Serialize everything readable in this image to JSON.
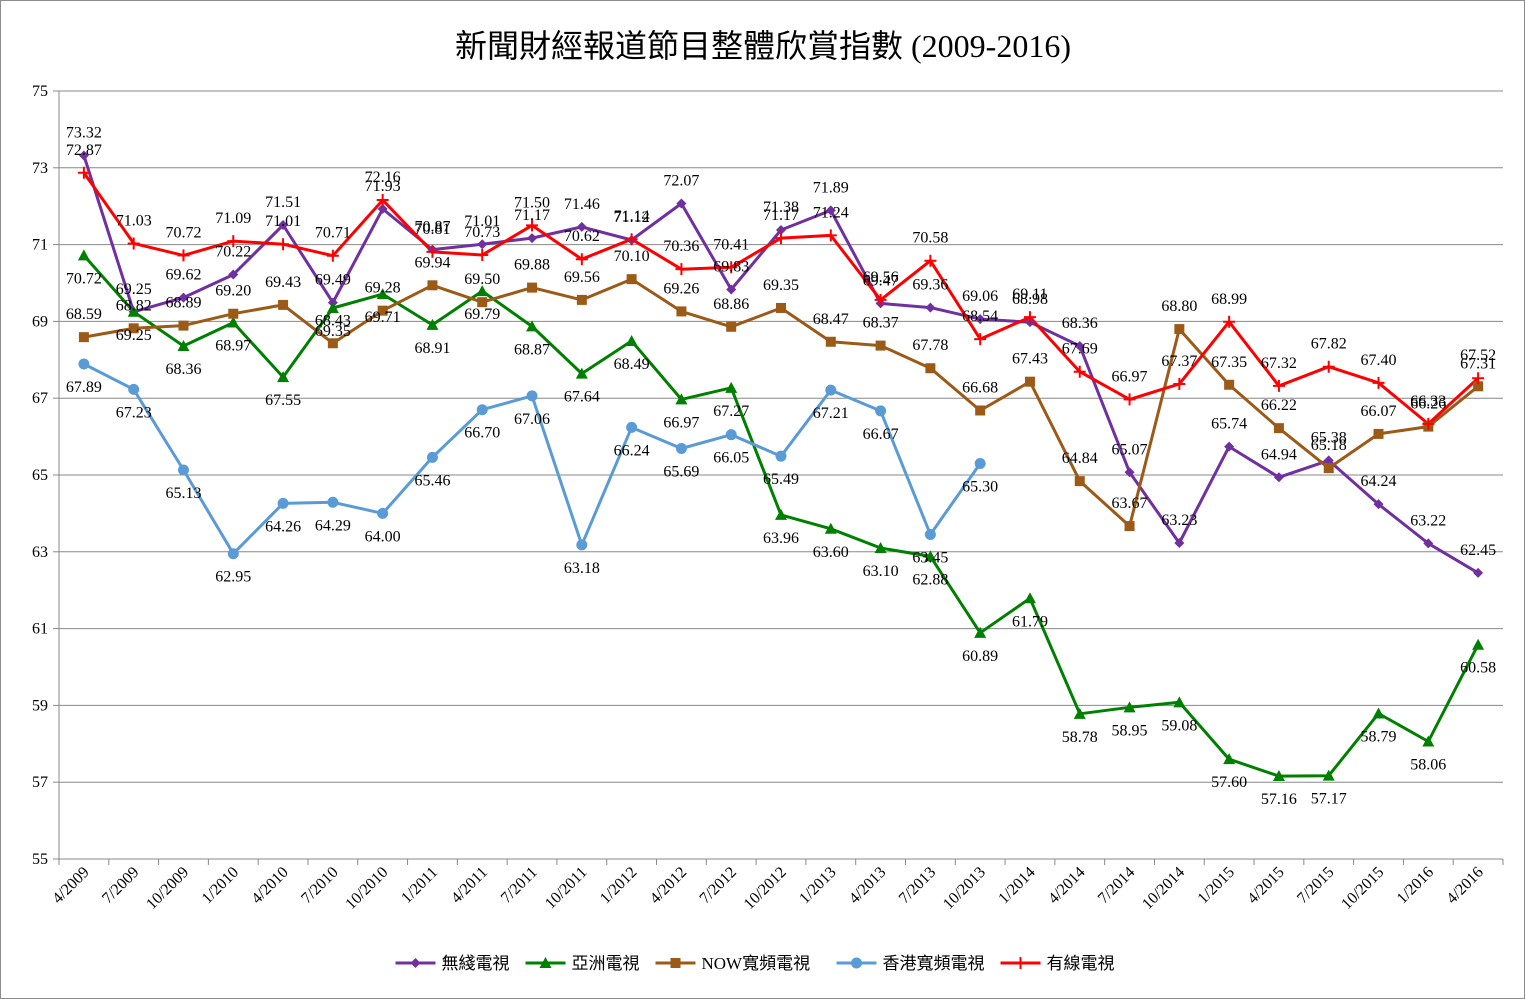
{
  "chart_data": {
    "type": "line",
    "title": "新聞財經報道節目整體欣賞指數 (2009-2016)",
    "xlabel": "",
    "ylabel": "",
    "ylim": [
      55,
      75
    ],
    "y_ticks": [
      55,
      57,
      59,
      61,
      63,
      65,
      67,
      69,
      71,
      73,
      75
    ],
    "grid": "horizontal",
    "legend_position": "bottom",
    "categories": [
      "4/2009",
      "7/2009",
      "10/2009",
      "1/2010",
      "4/2010",
      "7/2010",
      "10/2010",
      "1/2011",
      "4/2011",
      "7/2011",
      "10/2011",
      "1/2012",
      "4/2012",
      "7/2012",
      "10/2012",
      "1/2013",
      "4/2013",
      "7/2013",
      "10/2013",
      "1/2014",
      "4/2014",
      "7/2014",
      "10/2014",
      "1/2015",
      "4/2015",
      "7/2015",
      "10/2015",
      "1/2016",
      "4/2016"
    ],
    "series": [
      {
        "name": "無綫電視",
        "color": "#7030a0",
        "marker": "diamond",
        "values": [
          73.32,
          69.25,
          69.62,
          70.22,
          71.51,
          69.49,
          71.93,
          70.87,
          71.01,
          71.17,
          71.46,
          71.12,
          72.07,
          69.83,
          71.38,
          71.89,
          69.47,
          69.36,
          69.06,
          68.98,
          68.36,
          65.07,
          63.23,
          65.74,
          64.94,
          65.38,
          64.24,
          63.22,
          62.45
        ]
      },
      {
        "name": "亞洲電視",
        "color": "#008000",
        "marker": "triangle",
        "values": [
          70.72,
          69.25,
          68.36,
          68.97,
          67.55,
          69.35,
          69.71,
          68.91,
          69.79,
          68.87,
          67.64,
          68.49,
          66.97,
          67.27,
          63.96,
          63.6,
          63.1,
          62.88,
          60.89,
          61.79,
          58.78,
          58.95,
          59.08,
          57.6,
          57.16,
          57.17,
          58.79,
          58.06,
          60.58
        ]
      },
      {
        "name": "NOW寬頻電視",
        "color": "#9c5a17",
        "marker": "square",
        "values": [
          68.59,
          68.82,
          68.89,
          69.2,
          69.43,
          68.43,
          69.28,
          69.94,
          69.5,
          69.88,
          69.56,
          70.1,
          69.26,
          68.86,
          69.35,
          68.47,
          68.37,
          67.78,
          66.68,
          67.43,
          64.84,
          63.67,
          68.8,
          67.35,
          66.22,
          65.18,
          66.07,
          66.26,
          67.31
        ]
      },
      {
        "name": "香港寬頻電視",
        "color": "#5b9bd5",
        "marker": "circle",
        "values": [
          67.89,
          67.23,
          65.13,
          62.95,
          64.26,
          64.29,
          64.0,
          65.46,
          66.7,
          67.06,
          63.18,
          66.24,
          65.69,
          66.05,
          65.49,
          67.21,
          66.67,
          63.45,
          65.3,
          null,
          null,
          null,
          null,
          null,
          null,
          null,
          null,
          null,
          null
        ]
      },
      {
        "name": "有線電視",
        "color": "#ff0000",
        "marker": "plus",
        "values": [
          72.87,
          71.03,
          70.72,
          71.09,
          71.01,
          70.71,
          72.16,
          70.81,
          70.73,
          71.5,
          70.62,
          71.14,
          70.36,
          70.41,
          71.17,
          71.24,
          69.56,
          70.58,
          68.54,
          69.11,
          67.69,
          66.97,
          67.37,
          68.99,
          67.32,
          67.82,
          67.4,
          66.33,
          67.52
        ]
      }
    ]
  }
}
